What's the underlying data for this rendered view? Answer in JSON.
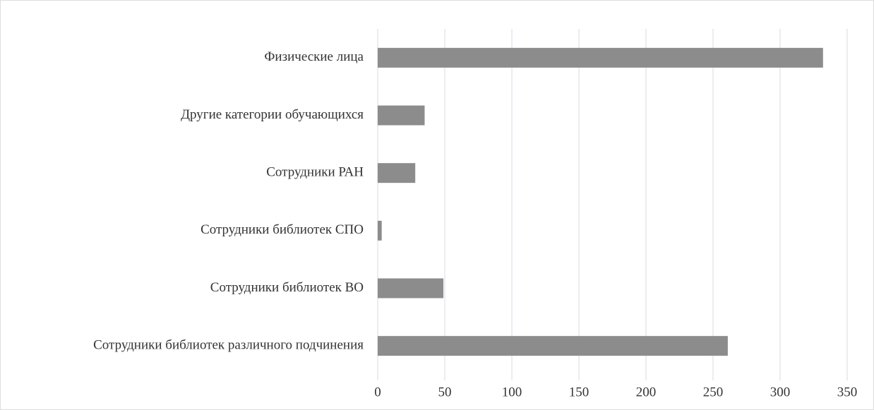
{
  "chart_data": {
    "type": "barh",
    "categories": [
      "Физические лица",
      "Другие категории обучающихся",
      "Сотрудники РАН",
      "Сотрудники библиотек СПО",
      "Сотрудники библиотек ВО",
      "Сотрудники библиотек различного подчинения"
    ],
    "values": [
      332,
      35,
      28,
      3,
      49,
      261
    ],
    "color": "#8c8c8c",
    "xlim": [
      0,
      350
    ],
    "xticks": [
      0,
      50,
      100,
      150,
      200,
      250,
      300,
      350
    ],
    "grid": true
  }
}
